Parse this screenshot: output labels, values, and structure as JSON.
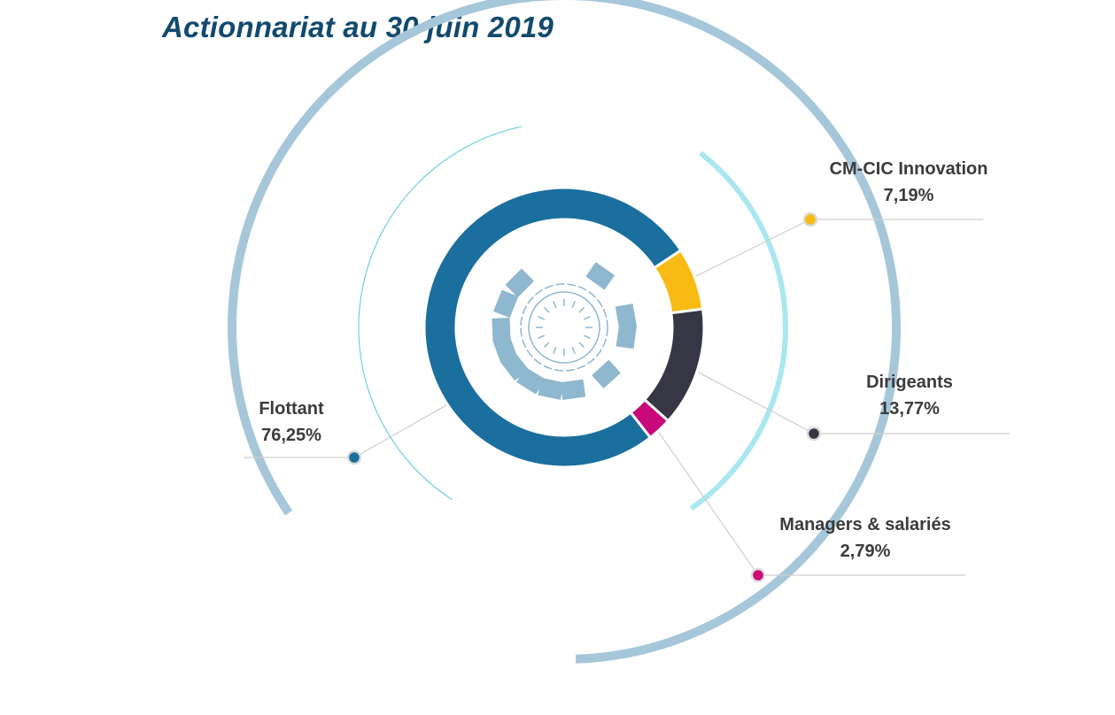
{
  "chart_data": {
    "type": "pie",
    "title": "Actionnariat au 30 juin 2019",
    "slices": [
      {
        "label": "Flottant",
        "value": 76.25,
        "value_label": "76,25%",
        "color": "#1b6f9e"
      },
      {
        "label": "CM-CIC Innovation",
        "value": 7.19,
        "value_label": "7,19%",
        "color": "#f7bb14"
      },
      {
        "label": "Dirigeants",
        "value": 13.77,
        "value_label": "13,77%",
        "color": "#363645"
      },
      {
        "label": "Managers & salariés",
        "value": 2.79,
        "value_label": "2,79%",
        "color": "#c9087b"
      }
    ]
  },
  "colors": {
    "title": "#124a6e",
    "leader_line": "#cfcfcf",
    "arc_light_blue": "#a6c7da",
    "arc_cyan": "#a9e7f1",
    "arc_thin_cyan": "#6fcfe0",
    "decor": "#8fb7cf"
  }
}
